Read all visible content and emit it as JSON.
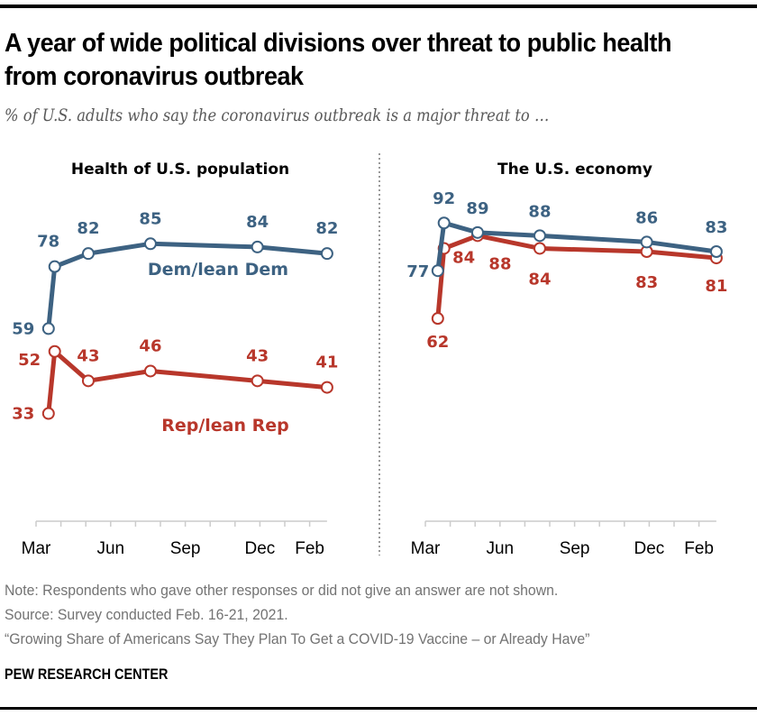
{
  "header": {
    "title": "A year of wide political divisions over threat to public health from coronavirus outbreak",
    "subtitle": "% of U.S. adults who say the coronavirus outbreak is a major threat to …"
  },
  "footer": {
    "note": "Note: Respondents who gave other responses or did not give an answer are not shown.",
    "source": "Source: Survey conducted Feb. 16-21, 2021.",
    "report": "“Growing Share of Americans Say They Plan To Get a COVID-19 Vaccine – or Already Have”",
    "brand": "PEW RESEARCH CENTER"
  },
  "colors": {
    "dem": "#3d6282",
    "rep": "#b8372b",
    "axis": "#cccccc",
    "divider": "#999999"
  },
  "chart_data": [
    {
      "type": "line",
      "title": "Health of U.S. population",
      "xlabel": "",
      "ylabel": "",
      "x_unit": "months since Mar 1, 2020",
      "x": [
        0.5,
        0.75,
        2.1,
        4.6,
        8.9,
        11.7
      ],
      "xlim": [
        0,
        11.7
      ],
      "ylim": [
        0,
        100
      ],
      "tick_labels": [
        {
          "label": "Mar",
          "at": 0
        },
        {
          "label": "Jun",
          "at": 3
        },
        {
          "label": "Sep",
          "at": 6
        },
        {
          "label": "Dec",
          "at": 9
        },
        {
          "label": "Feb",
          "at": 11
        }
      ],
      "minor_ticks": 12,
      "grid": false,
      "series": [
        {
          "name": "Dem/lean Dem",
          "key": "dem",
          "values": [
            59,
            78,
            82,
            85,
            84,
            82
          ]
        },
        {
          "name": "Rep/lean Rep",
          "key": "rep",
          "values": [
            33,
            52,
            43,
            46,
            43,
            41
          ]
        }
      ]
    },
    {
      "type": "line",
      "title": "The U.S. economy",
      "xlabel": "",
      "ylabel": "",
      "x_unit": "months since Mar 1, 2020",
      "x": [
        0.5,
        0.75,
        2.1,
        4.6,
        8.9,
        11.7
      ],
      "xlim": [
        0,
        11.7
      ],
      "ylim": [
        0,
        100
      ],
      "tick_labels": [
        {
          "label": "Mar",
          "at": 0
        },
        {
          "label": "Jun",
          "at": 3
        },
        {
          "label": "Sep",
          "at": 6
        },
        {
          "label": "Dec",
          "at": 9
        },
        {
          "label": "Feb",
          "at": 11
        }
      ],
      "minor_ticks": 12,
      "grid": false,
      "series": [
        {
          "name": "Dem/lean Dem",
          "key": "dem",
          "values": [
            77,
            92,
            89,
            88,
            86,
            83
          ]
        },
        {
          "name": "Rep/lean Rep",
          "key": "rep",
          "values": [
            62,
            84,
            88,
            84,
            83,
            81
          ]
        }
      ]
    }
  ]
}
